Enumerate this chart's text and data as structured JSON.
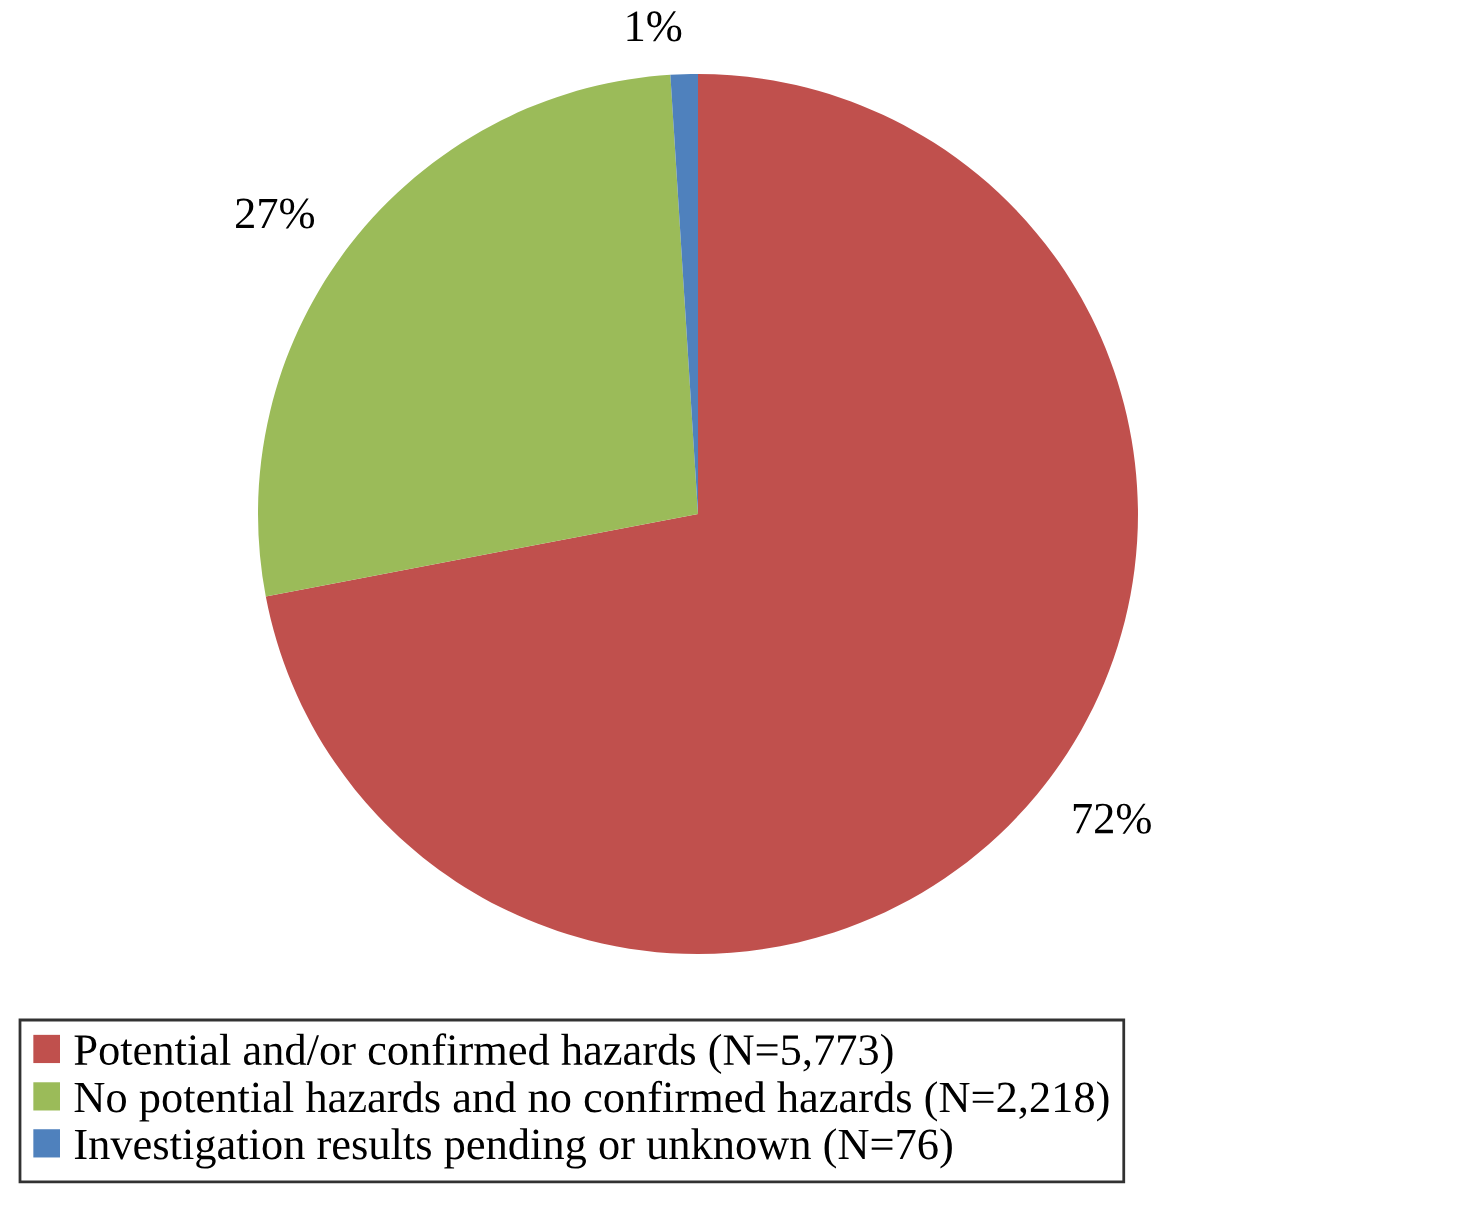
{
  "chart_data": {
    "type": "pie",
    "categories": [
      "Potential and/or confirmed hazards (N=5,773)",
      "No potential hazards and no confirmed hazards (N=2,218)",
      "Investigation results pending or unknown (N=76)"
    ],
    "values": [
      72,
      27,
      1
    ],
    "colors": [
      "#c0504d",
      "#9bbb59",
      "#4f81bd"
    ],
    "value_labels": [
      "72%",
      "27%",
      "1%"
    ],
    "legend": "bottom"
  }
}
